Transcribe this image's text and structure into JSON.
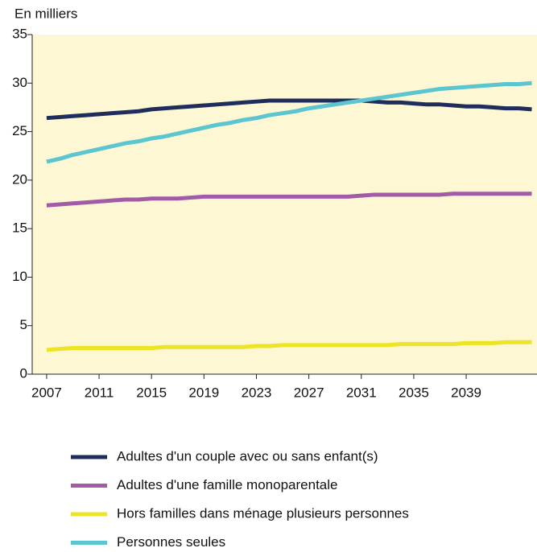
{
  "chart_data": {
    "type": "line",
    "ylabel": "En milliers",
    "x": [
      2007,
      2008,
      2009,
      2010,
      2011,
      2012,
      2013,
      2014,
      2015,
      2016,
      2017,
      2018,
      2019,
      2020,
      2021,
      2022,
      2023,
      2024,
      2025,
      2026,
      2027,
      2028,
      2029,
      2030,
      2031,
      2032,
      2033,
      2034,
      2035,
      2036,
      2037,
      2038,
      2039,
      2040,
      2041,
      2042,
      2043,
      2044
    ],
    "series": [
      {
        "name": "Adultes d'un couple avec ou sans enfant(s)",
        "color": "#1f2d5c",
        "values": [
          26.4,
          26.5,
          26.6,
          26.7,
          26.8,
          26.9,
          27.0,
          27.1,
          27.3,
          27.4,
          27.5,
          27.6,
          27.7,
          27.8,
          27.9,
          28.0,
          28.1,
          28.2,
          28.2,
          28.2,
          28.2,
          28.2,
          28.2,
          28.2,
          28.2,
          28.1,
          28.0,
          28.0,
          27.9,
          27.8,
          27.8,
          27.7,
          27.6,
          27.6,
          27.5,
          27.4,
          27.4,
          27.3
        ]
      },
      {
        "name": "Adultes d'une famille monoparentale",
        "color": "#a25ba6",
        "values": [
          17.4,
          17.5,
          17.6,
          17.7,
          17.8,
          17.9,
          18.0,
          18.0,
          18.1,
          18.1,
          18.1,
          18.2,
          18.3,
          18.3,
          18.3,
          18.3,
          18.3,
          18.3,
          18.3,
          18.3,
          18.3,
          18.3,
          18.3,
          18.3,
          18.4,
          18.5,
          18.5,
          18.5,
          18.5,
          18.5,
          18.5,
          18.6,
          18.6,
          18.6,
          18.6,
          18.6,
          18.6,
          18.6
        ]
      },
      {
        "name": "Hors familles dans ménage plusieurs personnes",
        "color": "#ece424",
        "values": [
          2.5,
          2.6,
          2.7,
          2.7,
          2.7,
          2.7,
          2.7,
          2.7,
          2.7,
          2.8,
          2.8,
          2.8,
          2.8,
          2.8,
          2.8,
          2.8,
          2.9,
          2.9,
          3.0,
          3.0,
          3.0,
          3.0,
          3.0,
          3.0,
          3.0,
          3.0,
          3.0,
          3.1,
          3.1,
          3.1,
          3.1,
          3.1,
          3.2,
          3.2,
          3.2,
          3.3,
          3.3,
          3.3
        ]
      },
      {
        "name": "Personnes seules",
        "color": "#5bc5d0",
        "values": [
          21.9,
          22.2,
          22.6,
          22.9,
          23.2,
          23.5,
          23.8,
          24.0,
          24.3,
          24.5,
          24.8,
          25.1,
          25.4,
          25.7,
          25.9,
          26.2,
          26.4,
          26.7,
          26.9,
          27.1,
          27.4,
          27.6,
          27.8,
          28.0,
          28.2,
          28.4,
          28.6,
          28.8,
          29.0,
          29.2,
          29.4,
          29.5,
          29.6,
          29.7,
          29.8,
          29.9,
          29.9,
          30.0
        ]
      }
    ],
    "xlim": [
      2005.9,
      2044.4
    ],
    "xticks": [
      2007,
      2011,
      2015,
      2019,
      2023,
      2027,
      2031,
      2035,
      2039
    ],
    "ylim": [
      0,
      35
    ],
    "yticks": [
      0,
      5,
      10,
      15,
      20,
      25,
      30,
      35
    ],
    "grid": false,
    "legend": "bottom",
    "background": "#fdf8d3"
  }
}
